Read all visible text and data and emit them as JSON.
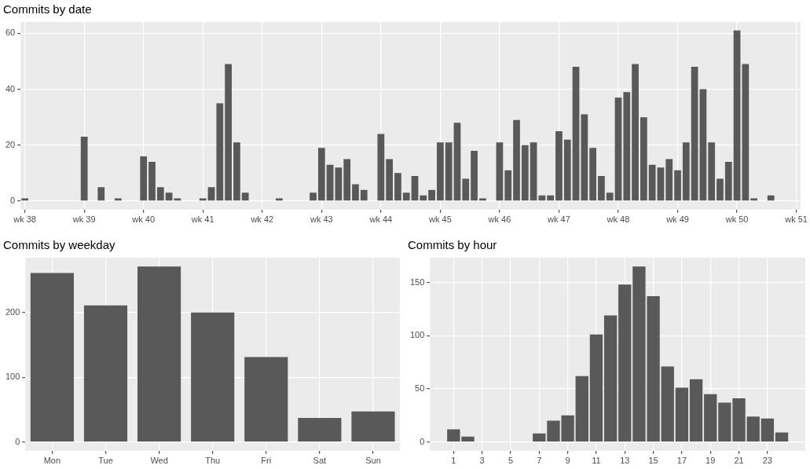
{
  "chart_data": [
    {
      "type": "bar",
      "title": "Commits by date",
      "color": "#595959",
      "grid": true,
      "categories": [
        "wk 38",
        null,
        null,
        null,
        null,
        null,
        null,
        "wk 39",
        null,
        null,
        null,
        null,
        null,
        null,
        "wk 40",
        null,
        null,
        null,
        null,
        null,
        null,
        "wk 41",
        null,
        null,
        null,
        null,
        null,
        null,
        "wk 42",
        null,
        null,
        null,
        null,
        null,
        null,
        "wk 43",
        null,
        null,
        null,
        null,
        null,
        null,
        "wk 44",
        null,
        null,
        null,
        null,
        null,
        null,
        "wk 45",
        null,
        null,
        null,
        null,
        null,
        null,
        "wk 46",
        null,
        null,
        null,
        null,
        null,
        null,
        "wk 47",
        null,
        null,
        null,
        null,
        null,
        null,
        "wk 48",
        null,
        null,
        null,
        null,
        null,
        null,
        "wk 49",
        null,
        null,
        null,
        null,
        null,
        null,
        "wk 50",
        null,
        null,
        null,
        null,
        null,
        null,
        "wk 51"
      ],
      "values": [
        1,
        null,
        null,
        null,
        null,
        null,
        null,
        23,
        null,
        5,
        null,
        1,
        null,
        null,
        16,
        14,
        5,
        3,
        1,
        null,
        null,
        1,
        5,
        35,
        49,
        21,
        3,
        null,
        null,
        null,
        1,
        null,
        null,
        null,
        3,
        19,
        13,
        12,
        15,
        6,
        4,
        null,
        24,
        15,
        10,
        3,
        9,
        2,
        4,
        21,
        21,
        28,
        8,
        18,
        1,
        null,
        21,
        11,
        29,
        20,
        21,
        2,
        2,
        25,
        22,
        48,
        31,
        19,
        9,
        3,
        37,
        39,
        49,
        30,
        13,
        12,
        15,
        11,
        21,
        48,
        40,
        21,
        8,
        14,
        61,
        49,
        1,
        null,
        2,
        null,
        null,
        null
      ],
      "ylim": [
        -3.05,
        64.05
      ],
      "yticks": [
        0,
        20,
        40,
        60
      ]
    },
    {
      "type": "bar",
      "title": "Commits by weekday",
      "color": "#595959",
      "grid": true,
      "categories": [
        "Mon",
        "Tue",
        "Wed",
        "Thu",
        "Fri",
        "Sat",
        "Sun"
      ],
      "values": [
        261,
        211,
        271,
        200,
        131,
        37,
        47
      ],
      "ylim": [
        -13.55,
        284.55
      ],
      "yticks": [
        0,
        100,
        200
      ]
    },
    {
      "type": "bar",
      "title": "Commits by hour",
      "color": "#595959",
      "grid": true,
      "x": [
        1,
        2,
        7,
        8,
        9,
        10,
        11,
        12,
        13,
        14,
        15,
        16,
        17,
        18,
        19,
        20,
        21,
        22,
        23,
        24
      ],
      "values": [
        12,
        5,
        8,
        20,
        25,
        62,
        101,
        119,
        148,
        165,
        137,
        71,
        51,
        59,
        45,
        37,
        41,
        24,
        22,
        9
      ],
      "xlim": [
        -0.65,
        25.65
      ],
      "xticks": [
        1,
        3,
        5,
        7,
        9,
        11,
        13,
        15,
        17,
        19,
        21,
        23
      ],
      "ylim": [
        -8.25,
        173.25
      ],
      "yticks": [
        0,
        50,
        100,
        150
      ]
    }
  ]
}
